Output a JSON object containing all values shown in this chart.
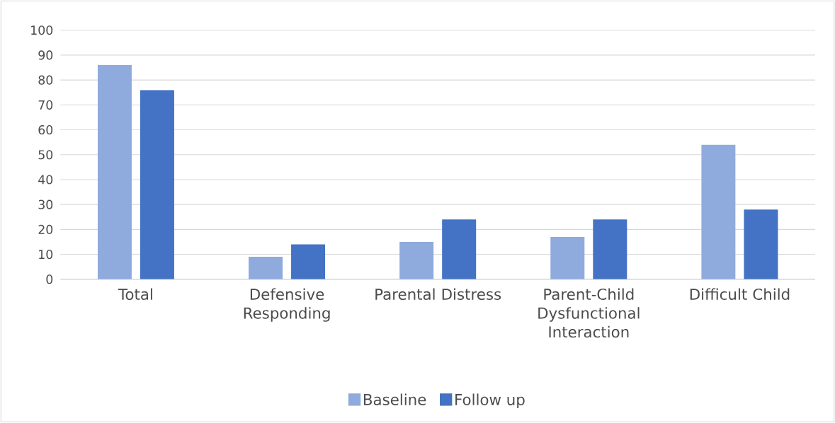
{
  "chart_data": {
    "type": "bar",
    "categories": [
      "Total",
      "Defensive Responding",
      "Parental Distress",
      "Parent-Child Dysfunctional Interaction",
      "Difficult Child"
    ],
    "series": [
      {
        "name": "Baseline",
        "color": "#8faadc",
        "values": [
          86,
          9,
          15,
          17,
          54
        ]
      },
      {
        "name": "Follow up",
        "color": "#4472c4",
        "values": [
          76,
          14,
          24,
          24,
          28
        ]
      }
    ],
    "ylim": [
      0,
      100
    ],
    "yticks": [
      0,
      10,
      20,
      30,
      40,
      50,
      60,
      70,
      80,
      90,
      100
    ],
    "grid": "y",
    "legend": "bottom"
  }
}
